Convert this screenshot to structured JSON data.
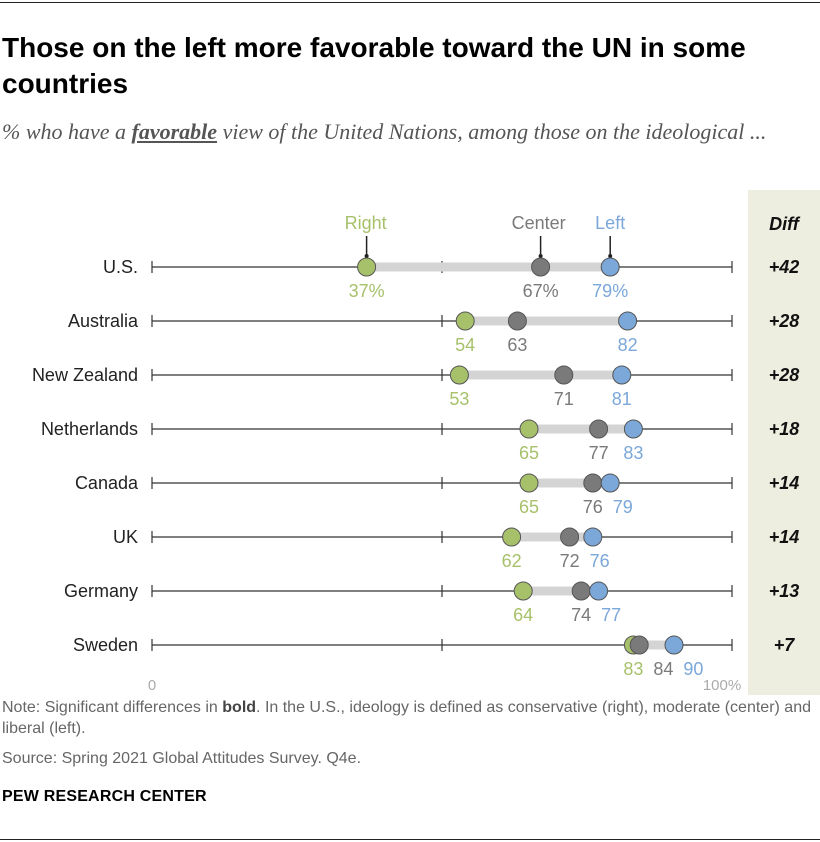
{
  "header": {
    "title": "Those on the left more favorable toward the UN in some countries",
    "subtitle_pre": "% who have a ",
    "subtitle_em": "favorable",
    "subtitle_post": " view of the United Nations, among those on the ideological ..."
  },
  "colors": {
    "right": "#a7c16b",
    "center": "#7a7a7a",
    "left": "#7ba7d9",
    "diff_bg": "#eeeee0",
    "range_bar": "#d4d4d4"
  },
  "chart_data": {
    "type": "dot-range",
    "title": "Those on the left more favorable toward the UN in some countries",
    "series": [
      {
        "key": "right",
        "name": "Right",
        "color": "#a7c16b"
      },
      {
        "key": "center",
        "name": "Center",
        "color": "#7a7a7a"
      },
      {
        "key": "left",
        "name": "Left",
        "color": "#7ba7d9"
      }
    ],
    "diff_header": "Diff",
    "axis": {
      "min": 0,
      "max": 100,
      "min_label": "0",
      "max_label": "100%"
    },
    "rows": [
      {
        "country": "U.S.",
        "right": 37,
        "center": 67,
        "left": 79,
        "right_label": "37%",
        "center_label": "67%",
        "left_label": "79%",
        "diff": "+42"
      },
      {
        "country": "Australia",
        "right": 54,
        "center": 63,
        "left": 82,
        "right_label": "54",
        "center_label": "63",
        "left_label": "82",
        "diff": "+28"
      },
      {
        "country": "New Zealand",
        "right": 53,
        "center": 71,
        "left": 81,
        "right_label": "53",
        "center_label": "71",
        "left_label": "81",
        "diff": "+28"
      },
      {
        "country": "Netherlands",
        "right": 65,
        "center": 77,
        "left": 83,
        "right_label": "65",
        "center_label": "77",
        "left_label": "83",
        "diff": "+18"
      },
      {
        "country": "Canada",
        "right": 65,
        "center": 76,
        "left": 79,
        "right_label": "65",
        "center_label": "76",
        "left_label": "79",
        "diff": "+14"
      },
      {
        "country": "UK",
        "right": 62,
        "center": 72,
        "left": 76,
        "right_label": "62",
        "center_label": "72",
        "left_label": "76",
        "diff": "+14"
      },
      {
        "country": "Germany",
        "right": 64,
        "center": 74,
        "left": 77,
        "right_label": "64",
        "center_label": "74",
        "left_label": "77",
        "diff": "+13"
      },
      {
        "country": "Sweden",
        "right": 83,
        "center": 84,
        "left": 90,
        "right_label": "83",
        "center_label": "84",
        "left_label": "90",
        "diff": "+7"
      }
    ]
  },
  "footer": {
    "note_pre": "Note: Significant differences in ",
    "note_bold": "bold",
    "note_post": ". In the U.S., ideology is defined as conservative (right), moderate (center) and liberal (left).",
    "source": "Source: Spring 2021 Global Attitudes Survey. Q4e.",
    "brand": "PEW RESEARCH CENTER"
  }
}
